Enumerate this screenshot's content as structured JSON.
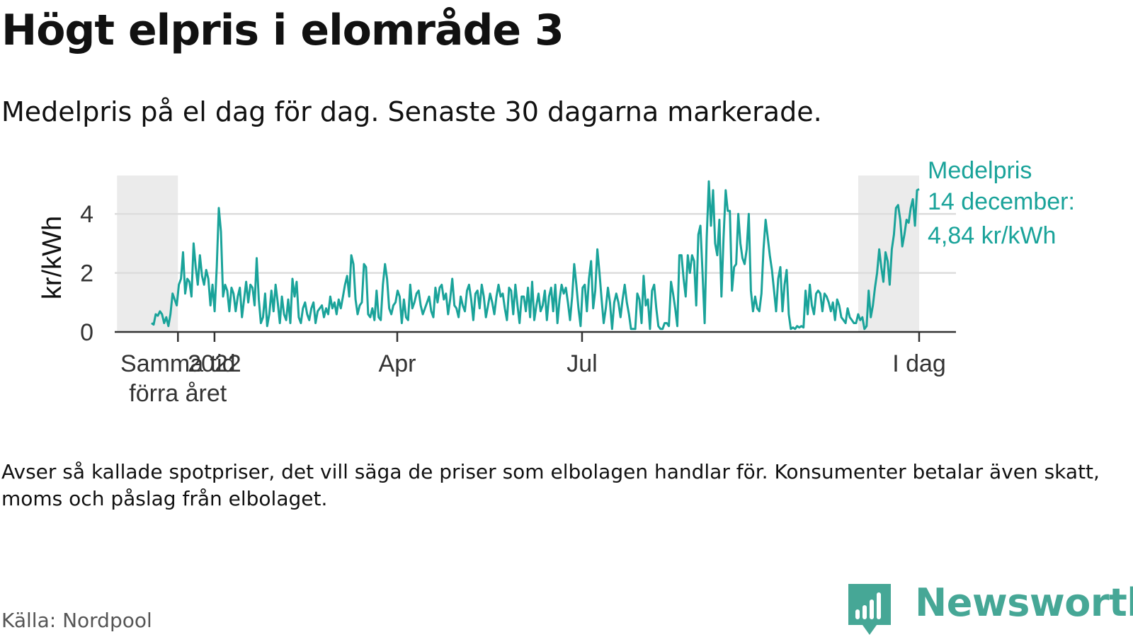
{
  "header": {
    "title": "Högt elpris i elområde 3",
    "subtitle": "Medelpris på el dag för dag.  Senaste 30 dagarna markerade."
  },
  "chart_data": {
    "type": "line",
    "title": "Högt elpris i elområde 3",
    "ylabel": "kr/kWh",
    "xlabel": "",
    "x_start": "2021-12-01",
    "x_end": "2022-12-14",
    "ylim": [
      0,
      5.3
    ],
    "y_ticks": [
      0,
      2,
      4
    ],
    "y_tick_labels": [
      "0",
      "2",
      "4"
    ],
    "grid": true,
    "color": "#1aa39a",
    "x_ticks": [
      {
        "date": "2021-12-14",
        "label": "Samma tid\nförra året"
      },
      {
        "date": "2022-01-01",
        "label": "2022"
      },
      {
        "date": "2022-04-01",
        "label": "Apr"
      },
      {
        "date": "2022-07-01",
        "label": "Jul"
      },
      {
        "date": "2022-12-14",
        "label": "I dag"
      }
    ],
    "highlight_ranges": [
      {
        "from": "2021-11-14",
        "to": "2021-12-14"
      },
      {
        "from": "2022-11-14",
        "to": "2022-12-14"
      }
    ],
    "series": [
      {
        "values": [
          0.3,
          0.25,
          0.6,
          0.55,
          0.7,
          0.6,
          0.3,
          0.5,
          0.2,
          0.6,
          1.3,
          1.1,
          0.9,
          1.6,
          1.8,
          2.7,
          1.3,
          1.8,
          1.7,
          1.2,
          3.0,
          2.2,
          1.6,
          2.6,
          1.9,
          1.6,
          2.1,
          1.8,
          0.9,
          1.6,
          0.7,
          2.2,
          4.2,
          3.4,
          1.2,
          1.6,
          1.4,
          0.7,
          1.5,
          1.3,
          0.7,
          1.2,
          1.5,
          0.5,
          1.1,
          1.7,
          1.0,
          1.6,
          1.5,
          0.9,
          2.5,
          1.1,
          0.3,
          0.5,
          1.3,
          0.2,
          0.6,
          1.4,
          0.7,
          1.6,
          1.0,
          0.3,
          1.2,
          0.6,
          0.4,
          1.1,
          0.3,
          1.8,
          1.2,
          1.7,
          0.5,
          0.3,
          0.8,
          1.0,
          0.6,
          0.4,
          0.8,
          1.0,
          0.3,
          0.7,
          0.8,
          0.9,
          0.5,
          0.8,
          0.6,
          1.2,
          0.8,
          1.0,
          0.6,
          1.1,
          0.8,
          1.2,
          1.6,
          1.9,
          1.2,
          2.6,
          2.3,
          1.1,
          0.6,
          0.9,
          1.0,
          2.3,
          2.2,
          0.6,
          0.5,
          0.8,
          0.4,
          1.4,
          0.5,
          0.4,
          1.6,
          2.3,
          1.8,
          0.8,
          0.6,
          0.9,
          1.0,
          1.4,
          1.2,
          0.3,
          1.1,
          0.5,
          0.4,
          1.6,
          0.8,
          1.0,
          1.3,
          1.4,
          0.9,
          0.6,
          0.8,
          1.0,
          1.2,
          0.7,
          0.5,
          1.5,
          1.0,
          1.5,
          1.6,
          1.1,
          1.3,
          0.6,
          1.1,
          1.8,
          0.9,
          0.8,
          0.5,
          1.2,
          0.9,
          0.7,
          1.4,
          1.6,
          1.1,
          0.4,
          1.3,
          1.4,
          0.8,
          1.6,
          1.2,
          0.5,
          0.9,
          1.3,
          1.0,
          0.6,
          1.2,
          1.6,
          1.2,
          1.3,
          0.8,
          0.4,
          1.5,
          1.4,
          0.6,
          1.6,
          0.9,
          0.3,
          1.2,
          1.2,
          0.7,
          1.5,
          0.5,
          1.7,
          0.4,
          0.9,
          1.3,
          0.7,
          0.9,
          1.4,
          0.4,
          1.2,
          1.5,
          0.7,
          1.6,
          0.3,
          1.1,
          1.6,
          1.3,
          1.5,
          1.0,
          0.4,
          1.2,
          2.3,
          1.6,
          0.8,
          0.2,
          1.5,
          1.6,
          0.7,
          1.8,
          2.4,
          0.8,
          1.4,
          2.8,
          2.0,
          1.1,
          0.3,
          0.8,
          1.5,
          1.0,
          0.1,
          1.0,
          1.3,
          1.0,
          0.5,
          1.1,
          1.6,
          1.0,
          0.6,
          0.1,
          0.1,
          0.1,
          1.3,
          1.1,
          0.3,
          1.9,
          0.9,
          1.1,
          0.1,
          1.4,
          1.6,
          0.8,
          0.2,
          0.1,
          0.1,
          0.3,
          0.3,
          0.2,
          1.7,
          1.3,
          0.8,
          0.2,
          2.6,
          2.6,
          1.8,
          1.2,
          2.6,
          2.0,
          2.6,
          2.4,
          0.9,
          3.3,
          3.6,
          2.0,
          0.3,
          3.2,
          5.1,
          3.6,
          4.8,
          3.0,
          2.6,
          3.8,
          1.2,
          3.2,
          4.8,
          4.1,
          4.1,
          1.4,
          2.2,
          2.3,
          4.0,
          3.0,
          2.5,
          2.3,
          2.8,
          4.0,
          1.4,
          0.7,
          1.2,
          0.8,
          0.7,
          1.3,
          2.8,
          3.8,
          3.2,
          2.6,
          2.1,
          1.4,
          0.7,
          1.8,
          2.2,
          0.7,
          1.6,
          2.1,
          0.6,
          0.1,
          0.15,
          0.1,
          0.2,
          0.15,
          0.2,
          0.15,
          1.4,
          0.6,
          1.6,
          0.9,
          0.6,
          1.3,
          1.4,
          1.3,
          0.7,
          1.3,
          1.2,
          1.0,
          0.7,
          1.0,
          0.4,
          1.1,
          0.9,
          0.5,
          0.4,
          0.3,
          0.8,
          0.5,
          0.4,
          0.3,
          0.3,
          0.6,
          0.4,
          0.5,
          0.1,
          0.2,
          1.4,
          0.5,
          0.9,
          1.5,
          2.0,
          2.8,
          2.2,
          1.7,
          2.7,
          2.4,
          1.6,
          2.8,
          3.3,
          4.2,
          4.3,
          3.8,
          2.9,
          3.3,
          3.8,
          3.7,
          4.2,
          4.5,
          3.6,
          4.8,
          4.84
        ]
      }
    ],
    "annotation": {
      "lines": [
        "Medelpris",
        "14 december:",
        "4,84 kr/kWh"
      ],
      "color": "#1aa39a"
    }
  },
  "footer": {
    "note": "Avser så kallade spotpriser, det vill säga de priser som elbolagen handlar för. Konsumenter betalar även skatt, moms och påslag från elbolaget.",
    "source": "Källa: Nordpool",
    "brand": "Newsworthy",
    "brand_color": "#46a796",
    "logo_icon": "newsworthy-logo-icon"
  }
}
